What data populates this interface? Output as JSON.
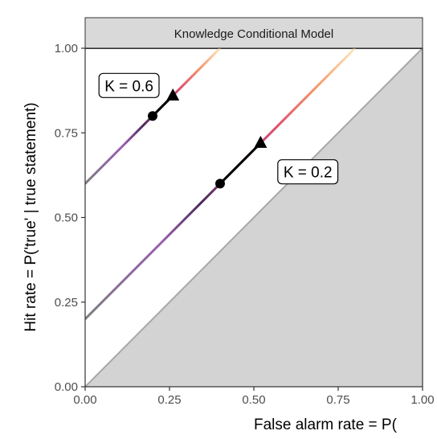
{
  "chart_data": {
    "type": "line",
    "title": "Knowledge Conditional Model",
    "xlabel": "False alarm rate = P(",
    "ylabel": "Hit rate = P('true' | true statement)",
    "xlim": [
      0,
      1
    ],
    "ylim": [
      0,
      1
    ],
    "x_ticks": [
      "0.00",
      "0.25",
      "0.50",
      "0.75",
      "1.00"
    ],
    "y_ticks": [
      "0.00",
      "0.25",
      "0.50",
      "0.75",
      "1.00"
    ],
    "grid": false,
    "legend": "none",
    "chance_region": {
      "description_color": "#d3d3d3",
      "line_color": "#a8a8a8"
    },
    "reference_line_y": 1.0,
    "series": [
      {
        "name": "K = 0.6",
        "k": 0.6,
        "x": [
          0,
          0.4
        ],
        "y": [
          0.6,
          1.0
        ],
        "point": {
          "x": 0.2,
          "y": 0.8
        },
        "arrow": {
          "x": 0.26,
          "y": 0.86
        },
        "label_at": {
          "x": 0.13,
          "y": 0.89
        }
      },
      {
        "name": "K = 0.2",
        "k": 0.2,
        "x": [
          0,
          0.8
        ],
        "y": [
          0.2,
          1.0
        ],
        "point": {
          "x": 0.4,
          "y": 0.6
        },
        "arrow": {
          "x": 0.52,
          "y": 0.72
        },
        "label_at": {
          "x": 0.66,
          "y": 0.635
        }
      }
    ],
    "gradient_colors": [
      "#7f7f7f",
      "#8a6c9c",
      "#9c5fb0",
      "#4b2a5a",
      "#a8447f",
      "#e0506e",
      "#f5986a",
      "#fce8bf"
    ]
  }
}
